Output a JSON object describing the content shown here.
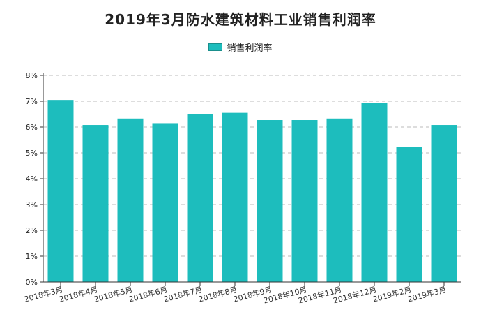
{
  "chart_data": {
    "type": "bar",
    "title": "2019年3月防水建筑材料工业销售利润率",
    "legend": {
      "position": "top-center"
    },
    "series": [
      {
        "name": "销售利润率",
        "color": "#1dbdbd",
        "values": [
          7.05,
          6.08,
          6.33,
          6.15,
          6.5,
          6.55,
          6.27,
          6.27,
          6.33,
          6.93,
          5.22,
          6.08
        ]
      }
    ],
    "categories": [
      "2018年3月",
      "2018年4月",
      "2018年5月",
      "2018年6月",
      "2018年7月",
      "2018年8月",
      "2018年9月",
      "2018年10月",
      "2018年11月",
      "2018年12月",
      "2019年2月",
      "2019年3月"
    ],
    "y_ticks": [
      "0%",
      "1%",
      "2%",
      "3%",
      "4%",
      "5%",
      "6%",
      "7%",
      "8%"
    ],
    "ylim": [
      0,
      8
    ],
    "grid": {
      "y": true,
      "style": "dashed"
    }
  }
}
